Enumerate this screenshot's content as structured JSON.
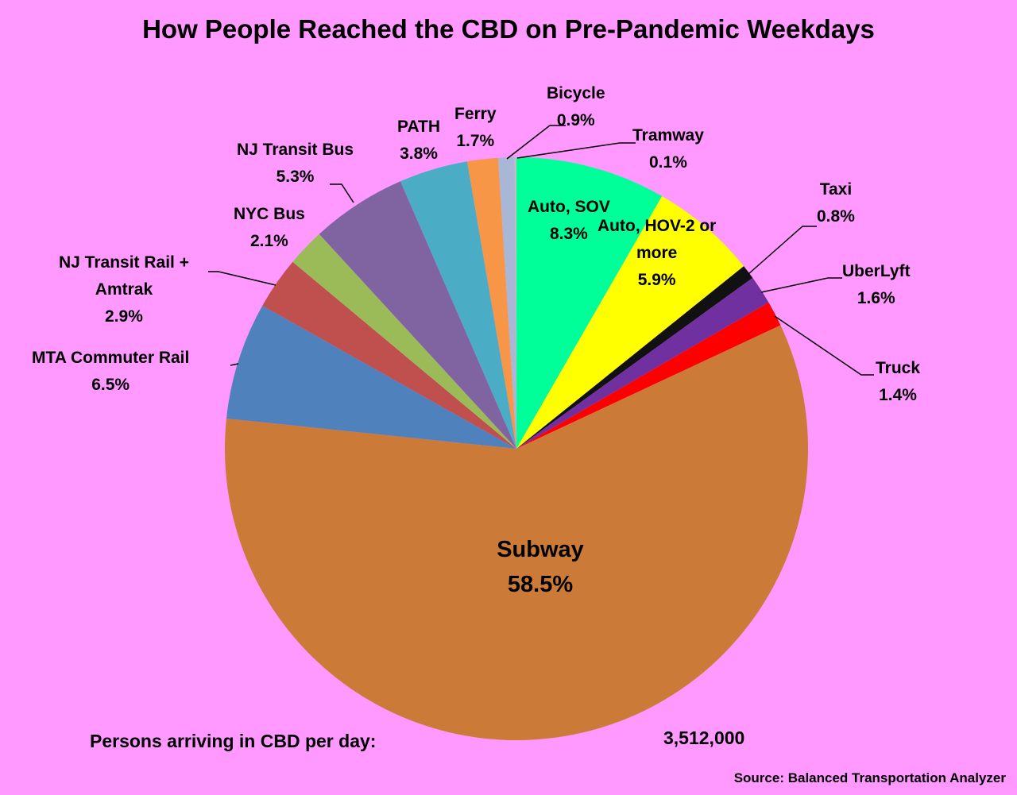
{
  "title": "How People Reached the CBD on Pre-Pandemic Weekdays",
  "footer": {
    "persons_label": "Persons arriving in CBD per day:",
    "persons_value": "3,512,000",
    "source": "Source: Balanced Transportation Analyzer"
  },
  "chart_data": {
    "type": "pie",
    "title": "How People Reached the CBD on Pre-Pandemic Weekdays",
    "start": "12 o'clock, clockwise",
    "categories": [
      "Auto, SOV",
      "Auto, HOV-2 or more",
      "Taxi",
      "UberLyft",
      "Truck",
      "Subway",
      "MTA Commuter Rail",
      "NJ Transit Rail + Amtrak",
      "NYC Bus",
      "NJ Transit Bus",
      "PATH",
      "Ferry",
      "Bicycle",
      "Tramway"
    ],
    "values": [
      8.3,
      5.9,
      0.8,
      1.6,
      1.4,
      58.5,
      6.5,
      2.9,
      2.1,
      5.3,
      3.8,
      1.7,
      0.9,
      0.1
    ],
    "colors": [
      "#00ff99",
      "#ffff00",
      "#111111",
      "#7030a0",
      "#ff0000",
      "#cc7a38",
      "#4f81bd",
      "#c0504d",
      "#9bbb59",
      "#8064a2",
      "#4bacc6",
      "#f79646",
      "#a9b7d6",
      "#c0c0c0"
    ],
    "labels": {
      "auto_sov": {
        "name": "Auto, SOV",
        "pct": "8.3%"
      },
      "auto_hov": {
        "name1": "Auto, HOV-2 or",
        "name2": "more",
        "pct": "5.9%"
      },
      "taxi": {
        "name": "Taxi",
        "pct": "0.8%"
      },
      "uberlyft": {
        "name": "UberLyft",
        "pct": "1.6%"
      },
      "truck": {
        "name": "Truck",
        "pct": "1.4%"
      },
      "subway": {
        "name": "Subway",
        "pct": "58.5%"
      },
      "mta": {
        "name": "MTA Commuter Rail",
        "pct": "6.5%"
      },
      "njrail": {
        "name1": "NJ Transit Rail +",
        "name2": "Amtrak",
        "pct": "2.9%"
      },
      "nycbus": {
        "name": "NYC Bus",
        "pct": "2.1%"
      },
      "njbus": {
        "name": "NJ Transit Bus",
        "pct": "5.3%"
      },
      "path": {
        "name": "PATH",
        "pct": "3.8%"
      },
      "ferry": {
        "name": "Ferry",
        "pct": "1.7%"
      },
      "bicycle": {
        "name": "Bicycle",
        "pct": "0.9%"
      },
      "tramway": {
        "name": "Tramway",
        "pct": "0.1%"
      }
    },
    "total_persons_per_day": 3512000
  }
}
